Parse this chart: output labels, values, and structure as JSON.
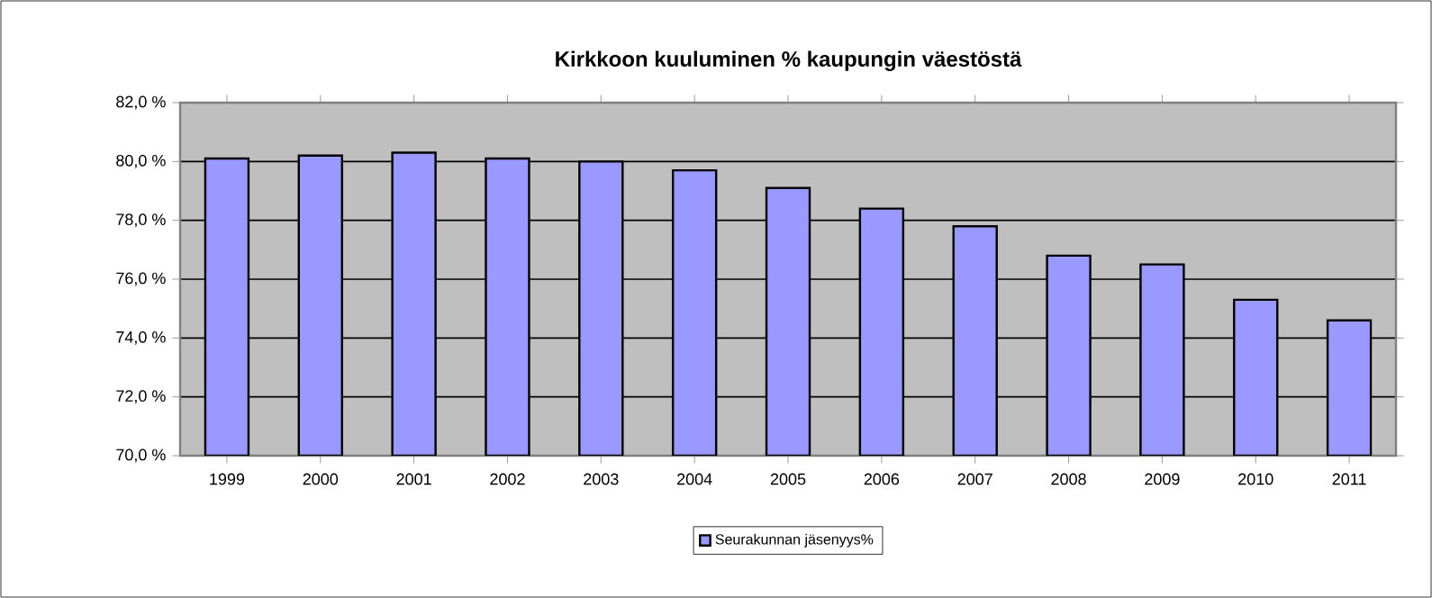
{
  "chart_data": {
    "type": "bar",
    "title": "Kirkkoon kuuluminen % kaupungin väestöstä",
    "categories": [
      "1999",
      "2000",
      "2001",
      "2002",
      "2003",
      "2004",
      "2005",
      "2006",
      "2007",
      "2008",
      "2009",
      "2010",
      "2011"
    ],
    "series": [
      {
        "name": "Seurakunnan jäsenyys%",
        "color": "#9999ff",
        "values": [
          80.1,
          80.2,
          80.3,
          80.1,
          80.0,
          79.7,
          79.1,
          78.4,
          77.8,
          76.8,
          76.5,
          75.3,
          74.6
        ]
      }
    ],
    "ylim": [
      70,
      82
    ],
    "yticks": [
      {
        "value": 70,
        "label": "70,0 %"
      },
      {
        "value": 72,
        "label": "72,0 %"
      },
      {
        "value": 74,
        "label": "74,0 %"
      },
      {
        "value": 76,
        "label": "76,0 %"
      },
      {
        "value": 78,
        "label": "78,0 %"
      },
      {
        "value": 80,
        "label": "80,0 %"
      },
      {
        "value": 82,
        "label": "82,0 %"
      }
    ],
    "grid": "y",
    "legend": "bottom"
  }
}
